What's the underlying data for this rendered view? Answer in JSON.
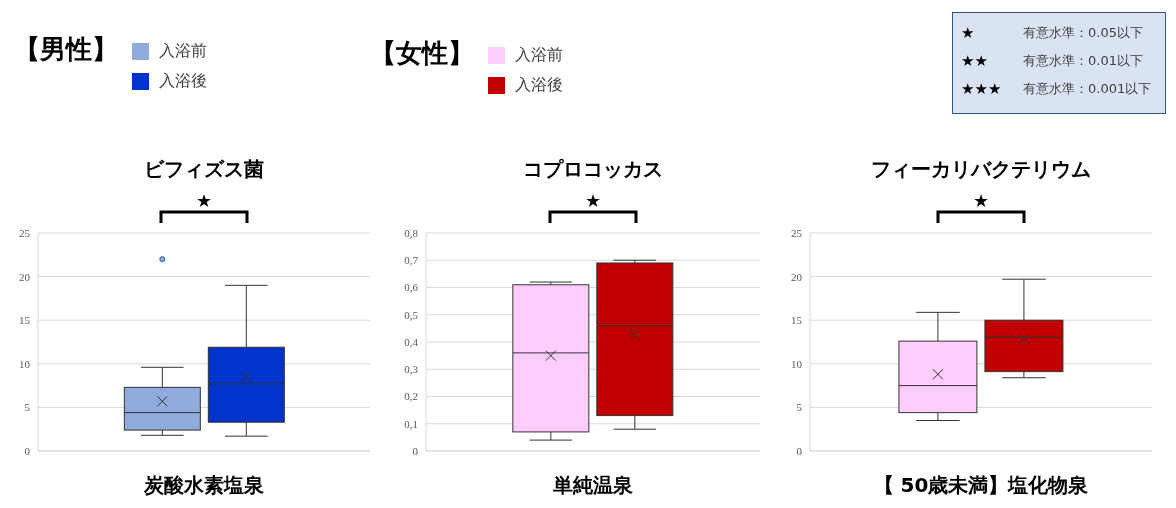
{
  "chart_data": [
    {
      "type": "box",
      "title": "ビフィズス菌",
      "xlabel": "炭酸水素塩泉",
      "annotations": [
        "★"
      ],
      "legend_title": "【男性】",
      "legend": "top left",
      "grid": "y",
      "categories": [
        null
      ],
      "ylim": [
        0,
        25
      ],
      "yticks": [
        0,
        5,
        10,
        15,
        20,
        25
      ],
      "series": [
        {
          "name": "入浴前",
          "color": "#8faadc",
          "boxes": [
            {
              "low": 1.8,
              "q1": 2.4,
              "median": 4.4,
              "q3": 7.3,
              "high": 9.6,
              "mean": 5.7,
              "outliers": [
                22
              ]
            }
          ]
        },
        {
          "name": "入浴後",
          "color": "#0033cc",
          "boxes": [
            {
              "low": 1.7,
              "q1": 3.3,
              "median": 7.7,
              "q3": 11.9,
              "high": 19,
              "mean": 8.5
            }
          ]
        }
      ]
    },
    {
      "type": "box",
      "title": "コプロコッカス",
      "xlabel": "単純温泉",
      "annotations": [
        "★"
      ],
      "legend_title": "【女性】",
      "legend": "top",
      "grid": "y",
      "categories": [
        null
      ],
      "ylim": [
        0,
        0.8
      ],
      "yticks": [
        0,
        {
          "value": 0.1,
          "label": "0,1"
        },
        {
          "value": 0.2,
          "label": "0,2"
        },
        {
          "value": 0.3,
          "label": "0,3"
        },
        {
          "value": 0.4,
          "label": "0,4"
        },
        {
          "value": 0.5,
          "label": "0,5"
        },
        {
          "value": 0.6,
          "label": "0,6"
        },
        {
          "value": 0.7,
          "label": "0,7"
        },
        {
          "value": 0.8,
          "label": "0,8"
        }
      ],
      "series": [
        {
          "name": "入浴前",
          "color": "#ffccff",
          "boxes": [
            {
              "low": 0.04,
              "q1": 0.07,
              "median": 0.36,
              "q3": 0.61,
              "high": 0.62,
              "mean": 0.35
            }
          ]
        },
        {
          "name": "入浴後",
          "color": "#c00000",
          "boxes": [
            {
              "low": 0.08,
              "q1": 0.13,
              "median": 0.46,
              "q3": 0.69,
              "high": 0.7,
              "mean": 0.43
            }
          ]
        }
      ]
    },
    {
      "type": "box",
      "title": "フィーカリバクテリウム",
      "xlabel": "【 50歳未満】塩化物泉",
      "annotations": [
        "★"
      ],
      "grid": "y",
      "categories": [
        null
      ],
      "ylim": [
        0,
        25
      ],
      "yticks": [
        0,
        5,
        10,
        15,
        20,
        25
      ],
      "series": [
        {
          "color": "#ffccff",
          "boxes": [
            {
              "low": 3.5,
              "q1": 4.4,
              "median": 7.5,
              "q3": 12.6,
              "high": 15.9,
              "mean": 8.8
            }
          ]
        },
        {
          "color": "#c00000",
          "boxes": [
            {
              "low": 8.4,
              "q1": 9.1,
              "median": 13.1,
              "q3": 15,
              "high": 19.7,
              "mean": 12.8
            }
          ]
        }
      ]
    },
    {
      "type": "other",
      "annotations": [
        "★",
        "有意水準：0.05以下",
        "★★",
        "有意水準：0.01以下",
        "★★★",
        "有意水準：0.001以下"
      ]
    }
  ]
}
